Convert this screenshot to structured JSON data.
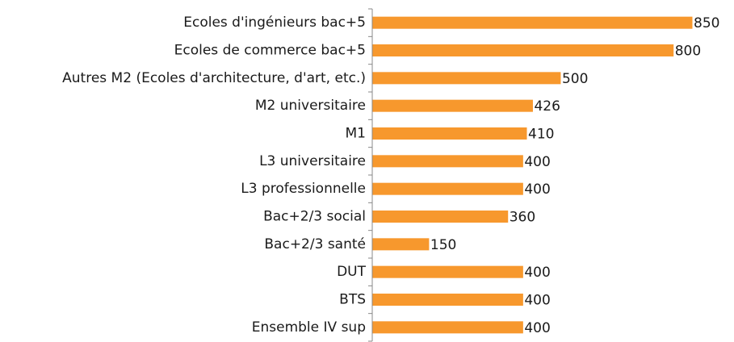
{
  "chart_data": {
    "type": "bar",
    "orientation": "horizontal",
    "categories": [
      "Ecoles d'ingénieurs bac+5",
      "Ecoles de commerce bac+5",
      "Autres M2 (Ecoles d'architecture, d'art, etc.)",
      "M2 universitaire",
      "M1",
      "L3 universitaire",
      "L3 professionnelle",
      "Bac+2/3 social",
      "Bac+2/3 santé",
      "DUT",
      "BTS",
      "Ensemble IV sup"
    ],
    "values": [
      850,
      800,
      500,
      426,
      410,
      400,
      400,
      360,
      150,
      400,
      400,
      400
    ],
    "color": "#f7982d"
  }
}
